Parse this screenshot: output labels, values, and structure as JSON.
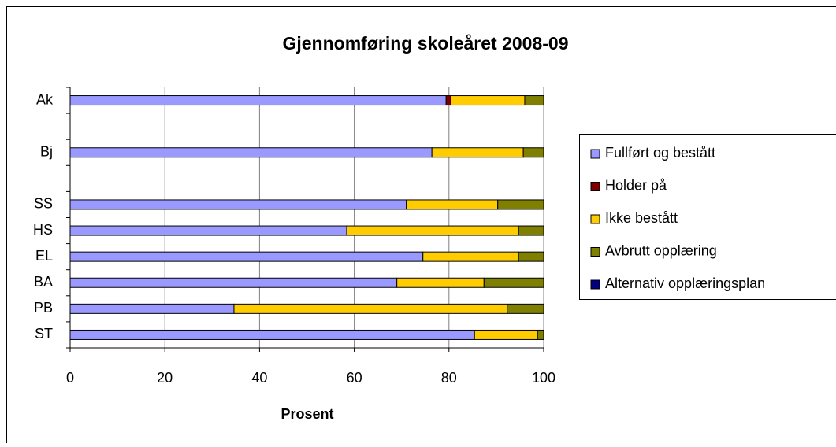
{
  "chart_data": {
    "type": "stacked-barh",
    "title": "Gjennomføring skoleåret 2008-09",
    "xlabel": "Prosent",
    "categories": [
      "Ak",
      null,
      "Bj",
      null,
      "SS",
      "HS",
      "EL",
      "BA",
      "PB",
      "ST"
    ],
    "series": [
      {
        "name": "Fullført og bestått",
        "color": "#9999ff",
        "values": [
          79.4,
          null,
          76.4,
          null,
          71.0,
          58.4,
          74.5,
          69.0,
          34.6,
          85.4
        ]
      },
      {
        "name": "Holder på",
        "color": "#800000",
        "values": [
          1.0,
          null,
          0,
          null,
          0,
          0,
          0,
          0,
          0,
          0
        ]
      },
      {
        "name": "Ikke bestått",
        "color": "#ffcc00",
        "values": [
          15.6,
          null,
          19.3,
          null,
          19.3,
          36.3,
          20.2,
          18.4,
          57.7,
          13.3
        ]
      },
      {
        "name": "Avbrutt opplæring",
        "color": "#808000",
        "values": [
          4.0,
          null,
          4.3,
          null,
          9.7,
          5.3,
          5.3,
          12.6,
          7.7,
          1.3
        ]
      },
      {
        "name": "Alternativ opplæringsplan",
        "color": "#000080",
        "values": [
          0,
          null,
          0,
          null,
          0,
          0,
          0,
          0,
          0,
          0
        ]
      }
    ],
    "xlim": [
      0,
      100
    ],
    "xticks": [
      0,
      20,
      40,
      60,
      80,
      100
    ],
    "grid": true,
    "legend": "right"
  }
}
